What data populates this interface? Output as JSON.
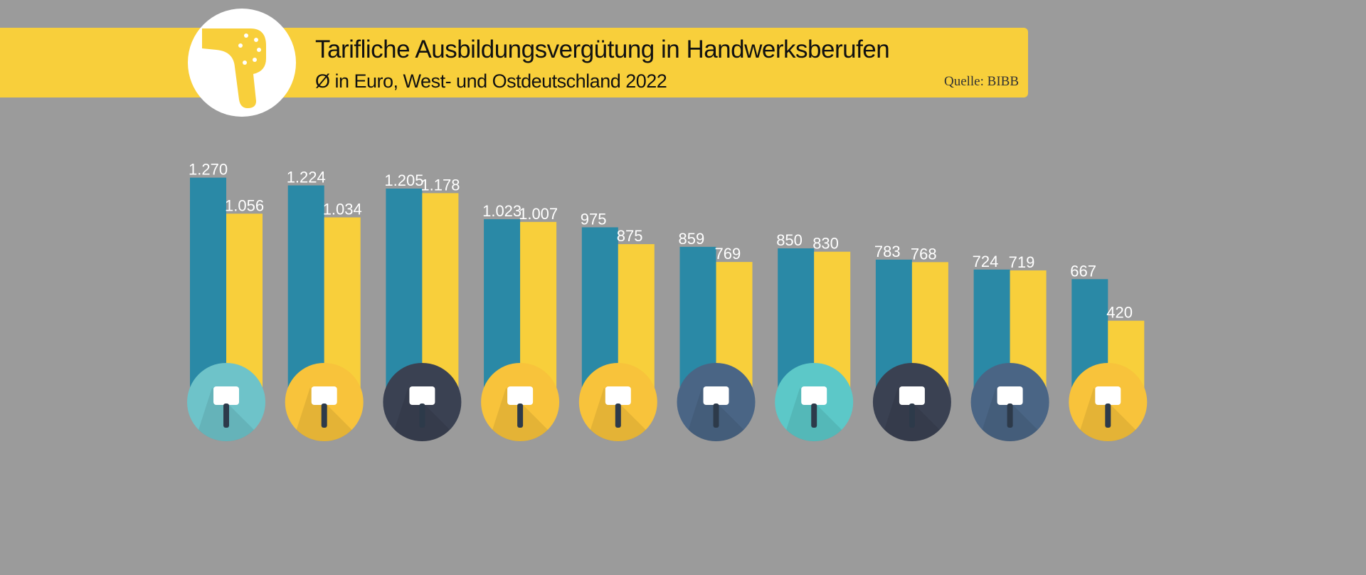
{
  "header": {
    "title": "Tarifliche Ausbildungsvergütung in Handwerksberufen",
    "subtitle": "Ø in Euro, West- und Ostdeutschland 2022",
    "source": "Quelle: BIBB"
  },
  "colors": {
    "west": "#2a89a6",
    "east": "#f8cf3b",
    "background": "#9b9b9b"
  },
  "chart_data": {
    "type": "bar",
    "title": "Tarifliche Ausbildungsvergütung in Handwerksberufen",
    "subtitle": "Ø in Euro, West- und Ostdeutschland 2022",
    "categories": [
      "hammer-icon",
      "bricks-icon",
      "house-ladder-icon",
      "waste-disposal-icon",
      "car-repair-icon",
      "hammer-screwdriver-icon",
      "paint-roller-icon",
      "cupcake-icon",
      "chimney-sweep-icon",
      "scissors-icon"
    ],
    "series": [
      {
        "values": [
          1270,
          1224,
          1205,
          1023,
          975,
          859,
          850,
          783,
          724,
          667
        ],
        "labels": [
          "1.270",
          "1.224",
          "1.205",
          "1.023",
          "975",
          "859",
          "850",
          "783",
          "724",
          "667"
        ],
        "color": "#2a89a6"
      },
      {
        "values": [
          1056,
          1034,
          1178,
          1007,
          875,
          769,
          830,
          768,
          719,
          420
        ],
        "labels": [
          "1.056",
          "1.034",
          "1.178",
          "1.007",
          "875",
          "769",
          "830",
          "768",
          "719",
          "420"
        ],
        "color": "#f8cf3b"
      }
    ],
    "icon_colors": [
      "#6ec3c9",
      "#f8c33b",
      "#3a4152",
      "#f8c33b",
      "#f8c33b",
      "#4a6585",
      "#5cc8c8",
      "#3a4152",
      "#4a6585",
      "#f8c33b"
    ],
    "grid": false
  }
}
